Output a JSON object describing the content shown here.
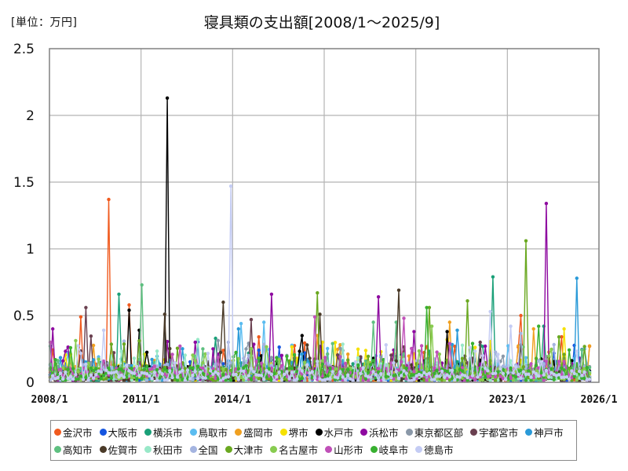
{
  "unit_label": "[単位：万円]",
  "title": "寝具類の支出額[2008/1～2025/9]",
  "chart_data": {
    "type": "line",
    "title": "寝具類の支出額[2008/1～2025/9]",
    "unit": "万円",
    "xlabel": "",
    "ylabel": "",
    "x_range": [
      "2008/1",
      "2025/9"
    ],
    "x_ticks": [
      "2008/1",
      "2011/1",
      "2014/1",
      "2017/1",
      "2020/1",
      "2023/1",
      "2026/1"
    ],
    "y_ticks": [
      0,
      0.5,
      1,
      1.5,
      2,
      2.5
    ],
    "ylim": [
      0,
      2.5
    ],
    "grid": true,
    "legend_position": "bottom",
    "markers": true,
    "months": 213,
    "series": [
      {
        "name": "金沢市",
        "color": "#f05a1e",
        "base": 0.06,
        "peaks": [
          [
            "2009/12",
            1.37
          ],
          [
            "2010/8",
            0.58
          ],
          [
            "2009/1",
            0.49
          ],
          [
            "2014/11",
            0.34
          ],
          [
            "2023/6",
            0.5
          ],
          [
            "2025/9",
            0.27
          ]
        ]
      },
      {
        "name": "大阪市",
        "color": "#1555e0",
        "base": 0.04,
        "peaks": [
          [
            "2016/5",
            0.22
          ]
        ]
      },
      {
        "name": "横浜市",
        "color": "#1aa078",
        "base": 0.06,
        "peaks": [
          [
            "2010/4",
            0.66
          ],
          [
            "2022/7",
            0.79
          ],
          [
            "2024/3",
            0.42
          ]
        ]
      },
      {
        "name": "鳥取市",
        "color": "#5bbcf0",
        "base": 0.06,
        "peaks": [
          [
            "2014/4",
            0.44
          ],
          [
            "2015/1",
            0.45
          ]
        ]
      },
      {
        "name": "盛岡市",
        "color": "#f0a020",
        "base": 0.06,
        "peaks": [
          [
            "2016/10",
            0.35
          ],
          [
            "2021/2",
            0.45
          ],
          [
            "2023/11",
            0.4
          ]
        ]
      },
      {
        "name": "堺市",
        "color": "#f5e100",
        "base": 0.05,
        "peaks": [
          [
            "2024/11",
            0.4
          ],
          [
            "2021/1",
            0.32
          ]
        ]
      },
      {
        "name": "水戸市",
        "color": "#000000",
        "base": 0.05,
        "peaks": [
          [
            "2011/11",
            2.13
          ],
          [
            "2010/8",
            0.54
          ],
          [
            "2010/12",
            0.39
          ],
          [
            "2016/4",
            0.35
          ],
          [
            "2021/1",
            0.38
          ]
        ]
      },
      {
        "name": "浜松市",
        "color": "#8e0aa0",
        "base": 0.06,
        "peaks": [
          [
            "2024/4",
            1.34
          ],
          [
            "2015/4",
            0.66
          ],
          [
            "2018/10",
            0.64
          ],
          [
            "2008/2",
            0.4
          ],
          [
            "2019/12",
            0.38
          ]
        ]
      },
      {
        "name": "東京都区部",
        "color": "#8a98a8",
        "base": 0.07,
        "peaks": [
          [
            "2014/6",
            0.25
          ]
        ]
      },
      {
        "name": "宇都宮市",
        "color": "#6a4050",
        "base": 0.06,
        "peaks": [
          [
            "2009/3",
            0.56
          ],
          [
            "2014/8",
            0.47
          ],
          [
            "2022/2",
            0.3
          ]
        ]
      },
      {
        "name": "神戸市",
        "color": "#2a9ad8",
        "base": 0.06,
        "peaks": [
          [
            "2025/4",
            0.78
          ],
          [
            "2014/3",
            0.4
          ],
          [
            "2021/5",
            0.39
          ]
        ]
      },
      {
        "name": "高知市",
        "color": "#5ec080",
        "base": 0.06,
        "peaks": [
          [
            "2011/1",
            0.73
          ],
          [
            "2018/8",
            0.45
          ],
          [
            "2019/5",
            0.45
          ]
        ]
      },
      {
        "name": "佐賀市",
        "color": "#4a3a28",
        "base": 0.05,
        "peaks": [
          [
            "2013/9",
            0.6
          ],
          [
            "2019/6",
            0.69
          ],
          [
            "2011/10",
            0.51
          ],
          [
            "2016/11",
            0.51
          ]
        ]
      },
      {
        "name": "秋田市",
        "color": "#98e8c8",
        "base": 0.06,
        "peaks": [
          [
            "2012/11",
            0.32
          ]
        ]
      },
      {
        "name": "全国",
        "color": "#a4b4e0",
        "base": 0.08,
        "peaks": [
          [
            "2013/11",
            0.3
          ]
        ]
      },
      {
        "name": "大津市",
        "color": "#6aa820",
        "base": 0.06,
        "peaks": [
          [
            "2023/8",
            1.06
          ],
          [
            "2016/10",
            0.67
          ],
          [
            "2021/9",
            0.61
          ],
          [
            "2020/6",
            0.56
          ]
        ]
      },
      {
        "name": "名古屋市",
        "color": "#88cc50",
        "base": 0.06,
        "peaks": [
          [
            "2020/7",
            0.42
          ]
        ]
      },
      {
        "name": "山形市",
        "color": "#c050b8",
        "base": 0.06,
        "peaks": [
          [
            "2008/1",
            0.3
          ],
          [
            "2016/9",
            0.49
          ],
          [
            "2019/8",
            0.48
          ]
        ]
      },
      {
        "name": "岐阜市",
        "color": "#38b030",
        "base": 0.06,
        "peaks": [
          [
            "2020/5",
            0.56
          ],
          [
            "2024/1",
            0.42
          ]
        ]
      },
      {
        "name": "徳島市",
        "color": "#c4ccf4",
        "base": 0.05,
        "peaks": [
          [
            "2013/12",
            1.47
          ],
          [
            "2022/6",
            0.53
          ],
          [
            "2009/10",
            0.39
          ],
          [
            "2023/2",
            0.42
          ]
        ]
      }
    ]
  },
  "legend": {
    "items": [
      {
        "label": "金沢市",
        "color": "#f05a1e"
      },
      {
        "label": "大阪市",
        "color": "#1555e0"
      },
      {
        "label": "横浜市",
        "color": "#1aa078"
      },
      {
        "label": "鳥取市",
        "color": "#5bbcf0"
      },
      {
        "label": "盛岡市",
        "color": "#f0a020"
      },
      {
        "label": "堺市",
        "color": "#f5e100"
      },
      {
        "label": "水戸市",
        "color": "#000000"
      },
      {
        "label": "浜松市",
        "color": "#8e0aa0"
      },
      {
        "label": "東京都区部",
        "color": "#8a98a8"
      },
      {
        "label": "宇都宮市",
        "color": "#6a4050"
      },
      {
        "label": "神戸市",
        "color": "#2a9ad8"
      },
      {
        "label": "高知市",
        "color": "#5ec080"
      },
      {
        "label": "佐賀市",
        "color": "#4a3a28"
      },
      {
        "label": "秋田市",
        "color": "#98e8c8"
      },
      {
        "label": "全国",
        "color": "#a4b4e0"
      },
      {
        "label": "大津市",
        "color": "#6aa820"
      },
      {
        "label": "名古屋市",
        "color": "#88cc50"
      },
      {
        "label": "山形市",
        "color": "#c050b8"
      },
      {
        "label": "岐阜市",
        "color": "#38b030"
      },
      {
        "label": "徳島市",
        "color": "#c4ccf4"
      }
    ]
  }
}
